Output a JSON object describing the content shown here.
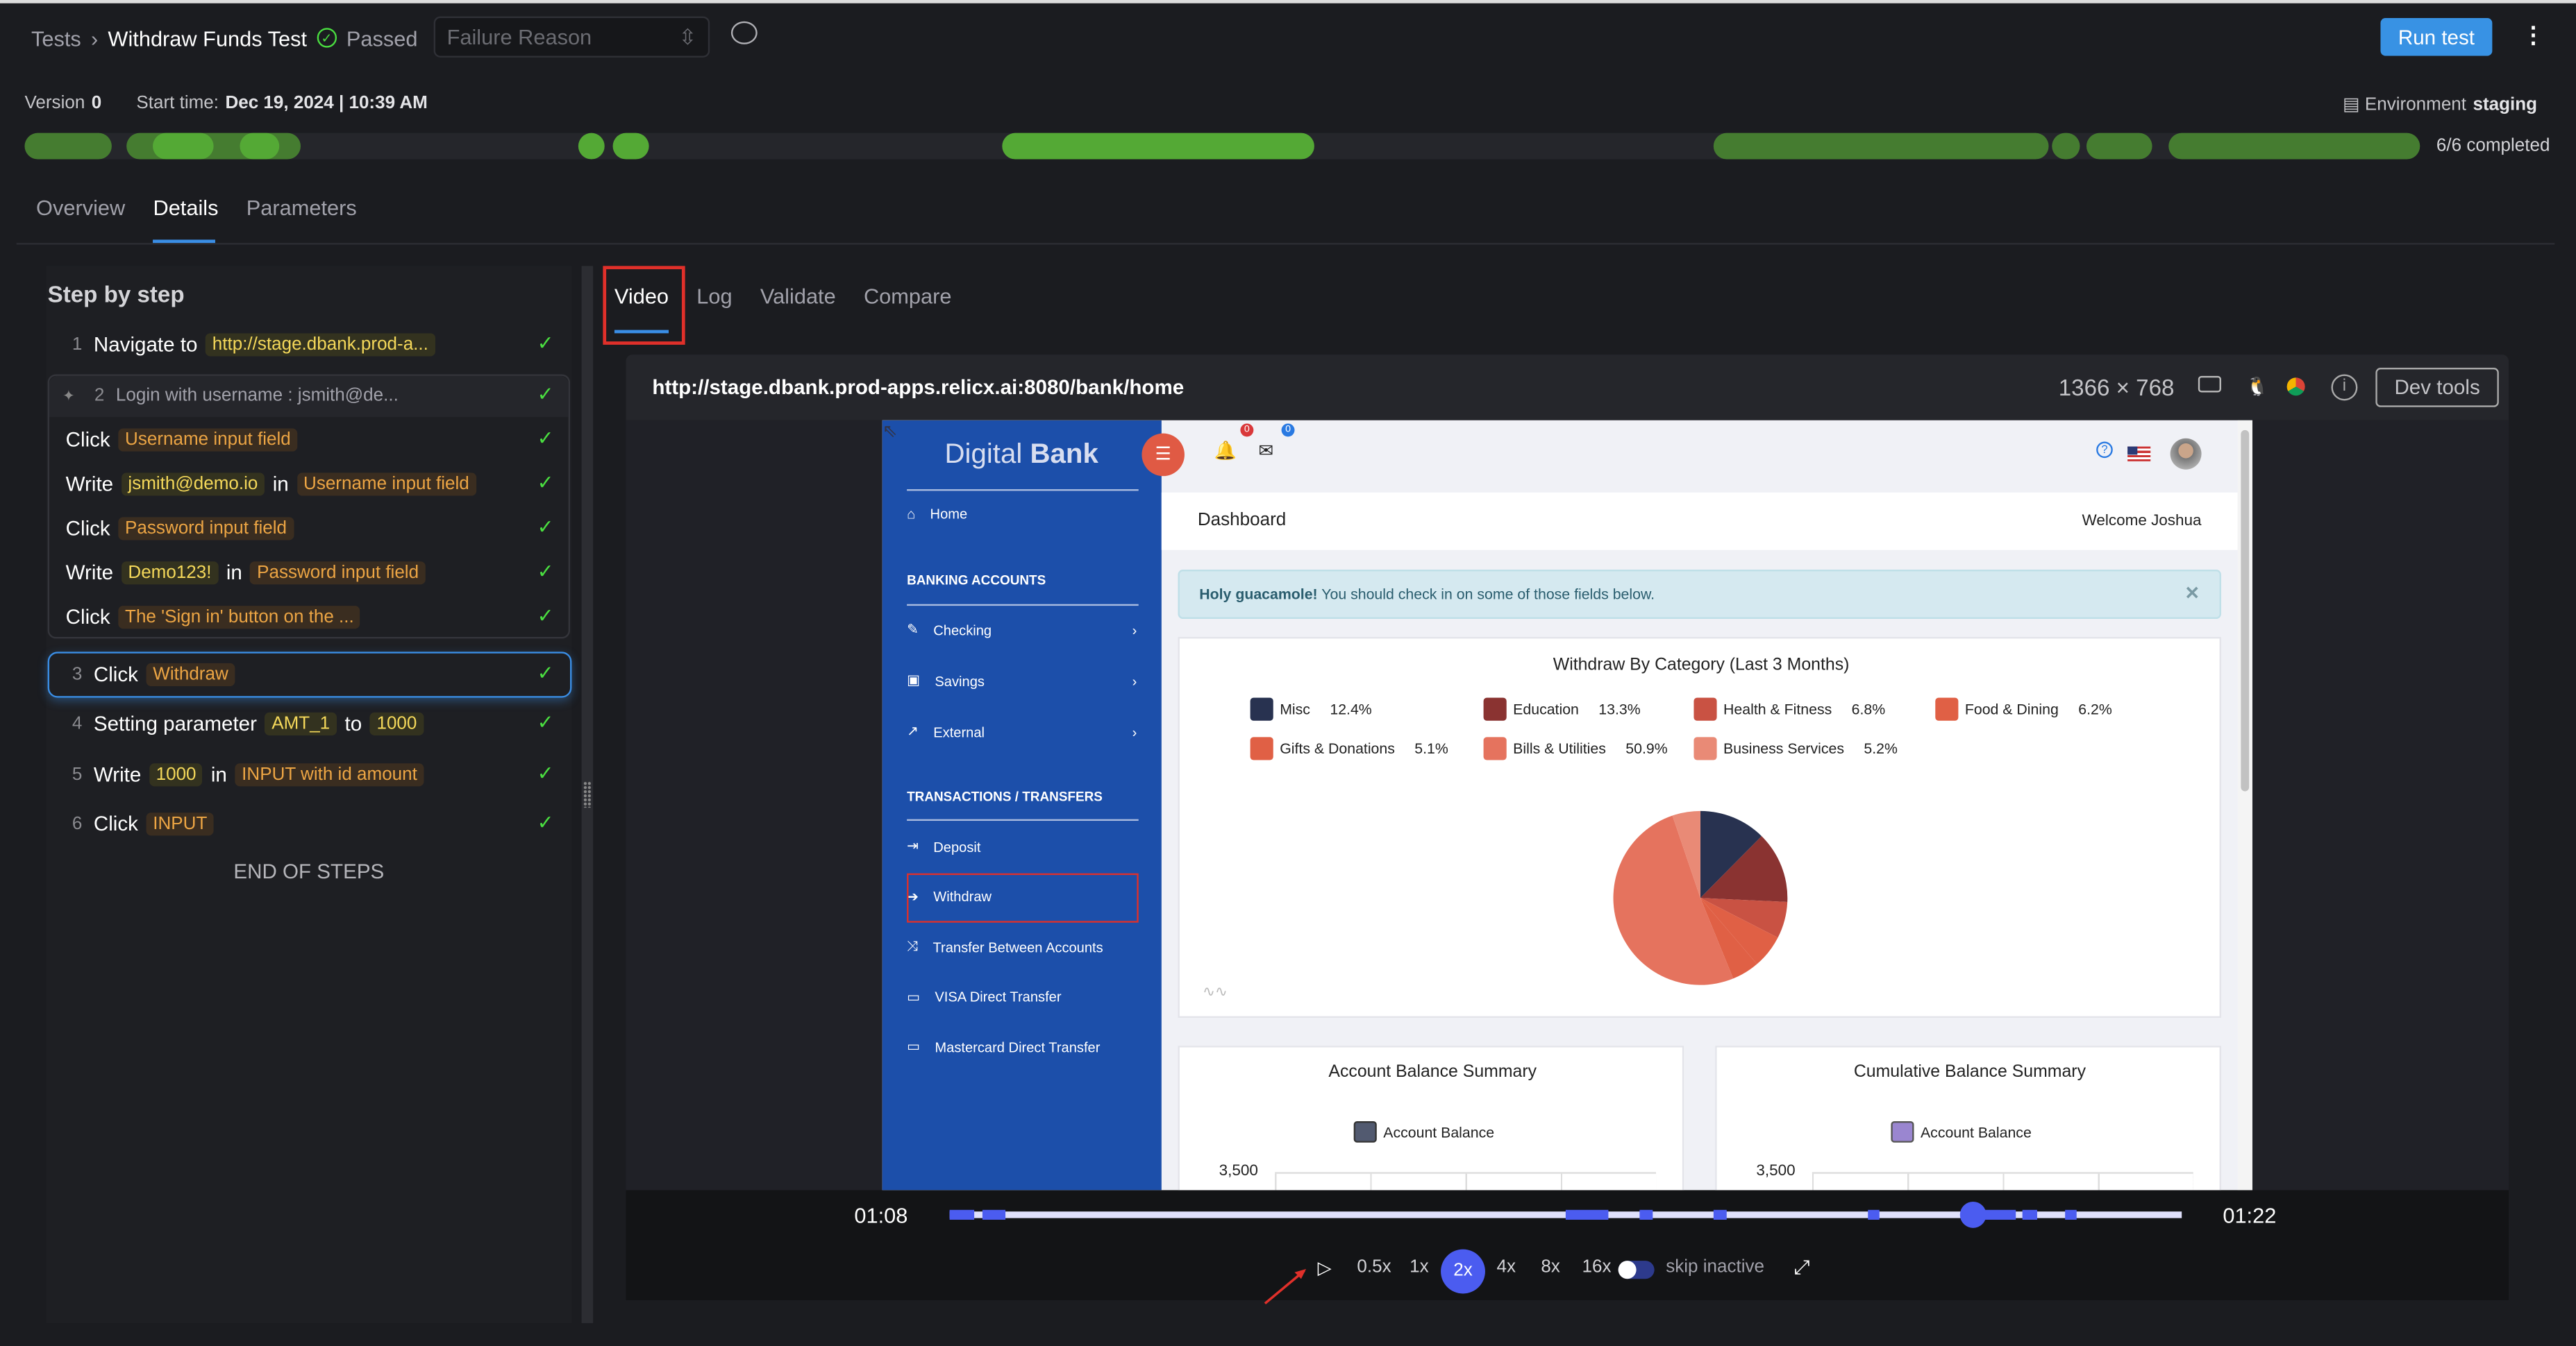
{
  "header": {
    "breadcrumb_root": "Tests",
    "test_name": "Withdraw Funds Test",
    "status": "Passed",
    "failure_reason_placeholder": "Failure Reason",
    "run_button": "Run test"
  },
  "meta": {
    "version_label": "Version",
    "version": "0",
    "start_label": "Start time:",
    "start_value": "Dec 19, 2024 | 10:39 AM",
    "env_label": "Environment",
    "env_value": "staging",
    "completed": "6/6 completed"
  },
  "tabs": [
    "Overview",
    "Details",
    "Parameters"
  ],
  "active_tab": "Details",
  "colors": {
    "accent": "#3a8ee6",
    "pass": "#4ade40",
    "bar_green": "#457c30",
    "bar_green_light": "#54a935",
    "highlight": "#e0302a"
  },
  "steps_title": "Step by step",
  "steps": [
    {
      "num": "1",
      "parts": [
        {
          "k": "text",
          "v": "Navigate to"
        },
        {
          "k": "val",
          "v": "http://stage.dbank.prod-a..."
        }
      ]
    },
    {
      "num": "2",
      "parts": [
        {
          "k": "text",
          "v": "Login with username : jsmith@de..."
        }
      ],
      "group": true
    },
    {
      "num": "",
      "parts": [
        {
          "k": "text",
          "v": "Click"
        },
        {
          "k": "el",
          "v": "Username input field"
        }
      ]
    },
    {
      "num": "",
      "parts": [
        {
          "k": "text",
          "v": "Write"
        },
        {
          "k": "val",
          "v": "jsmith@demo.io"
        },
        {
          "k": "text",
          "v": "in"
        },
        {
          "k": "el",
          "v": "Username input field"
        }
      ]
    },
    {
      "num": "",
      "parts": [
        {
          "k": "text",
          "v": "Click"
        },
        {
          "k": "el",
          "v": "Password input field"
        }
      ]
    },
    {
      "num": "",
      "parts": [
        {
          "k": "text",
          "v": "Write"
        },
        {
          "k": "val",
          "v": "Demo123!"
        },
        {
          "k": "text",
          "v": "in"
        },
        {
          "k": "el",
          "v": "Password input field"
        }
      ]
    },
    {
      "num": "",
      "parts": [
        {
          "k": "text",
          "v": "Click"
        },
        {
          "k": "el",
          "v": "The 'Sign in' button on the ..."
        }
      ]
    },
    {
      "num": "3",
      "parts": [
        {
          "k": "text",
          "v": "Click"
        },
        {
          "k": "el",
          "v": "Withdraw"
        }
      ],
      "selected": true
    },
    {
      "num": "4",
      "parts": [
        {
          "k": "text",
          "v": "Setting parameter"
        },
        {
          "k": "val",
          "v": "AMT_1"
        },
        {
          "k": "text",
          "v": "to"
        },
        {
          "k": "val",
          "v": "1000"
        }
      ]
    },
    {
      "num": "5",
      "parts": [
        {
          "k": "text",
          "v": "Write"
        },
        {
          "k": "val",
          "v": "1000"
        },
        {
          "k": "text",
          "v": "in"
        },
        {
          "k": "el",
          "v": "INPUT with id amount"
        }
      ]
    },
    {
      "num": "6",
      "parts": [
        {
          "k": "text",
          "v": "Click"
        },
        {
          "k": "el",
          "v": "INPUT"
        }
      ]
    }
  ],
  "end_label": "END OF STEPS",
  "video_tabs": [
    "Video",
    "Log",
    "Validate",
    "Compare"
  ],
  "video": {
    "url": "http://stage.dbank.prod-apps.relicx.ai:8080/bank/home",
    "resolution": "1366 × 768",
    "dev_tools": "Dev tools",
    "time_current": "01:08",
    "time_total": "01:22",
    "progress": 0.83,
    "speeds": [
      "0.5x",
      "1x",
      "2x",
      "4x",
      "8x",
      "16x"
    ],
    "active_speed": "2x",
    "skip_inactive": "skip inactive",
    "skip_inactive_on": false
  },
  "bank": {
    "brand_light": "Digital",
    "brand_bold": "Bank",
    "notif_count": "0",
    "mail_count": "0",
    "home": "Home",
    "banking_header": "BANKING ACCOUNTS",
    "accounts": [
      "Checking",
      "Savings",
      "External"
    ],
    "tx_header": "TRANSACTIONS / TRANSFERS",
    "tx": [
      "Deposit",
      "Withdraw",
      "Transfer Between Accounts",
      "VISA Direct Transfer",
      "Mastercard Direct Transfer"
    ],
    "page_title": "Dashboard",
    "welcome": "Welcome Joshua",
    "alert_bold": "Holy guacamole!",
    "alert_text": "You should check in on some of those fields below.",
    "balance_title": "Account Balance Summary",
    "balance_legend": "Account Balance",
    "balance_tick": "3,500",
    "cumulative_title": "Cumulative Balance Summary",
    "cumulative_legend": "Account Balance",
    "cumulative_tick": "3,500"
  },
  "chart_data": {
    "type": "pie",
    "title": "Withdraw By Category (Last 3 Months)",
    "labels": [
      "Misc",
      "Education",
      "Health & Fitness",
      "Food & Dining",
      "Gifts & Donations",
      "Bills & Utilities",
      "Business Services"
    ],
    "label_texts": [
      "12.4%",
      "13.3%",
      "6.8%",
      "6.2%",
      "5.1%",
      "50.9%",
      "5.2%"
    ],
    "values": [
      12.4,
      13.3,
      6.8,
      6.2,
      5.1,
      50.9,
      5.2
    ],
    "colors": [
      "#283250",
      "#8a3331",
      "#c95243",
      "#e06045",
      "#e06045",
      "#e5735e",
      "#e98a76"
    ],
    "legend": "top"
  }
}
